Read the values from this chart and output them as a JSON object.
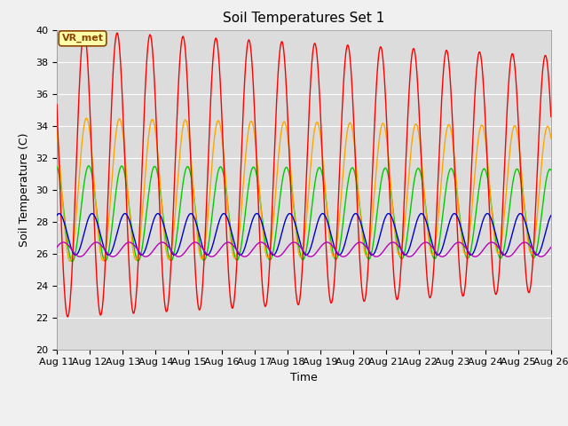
{
  "title": "Soil Temperatures Set 1",
  "xlabel": "Time",
  "ylabel": "Soil Temperature (C)",
  "ylim": [
    20,
    40
  ],
  "x_tick_labels": [
    "Aug 11",
    "Aug 12",
    "Aug 13",
    "Aug 14",
    "Aug 15",
    "Aug 16",
    "Aug 17",
    "Aug 18",
    "Aug 19",
    "Aug 20",
    "Aug 21",
    "Aug 22",
    "Aug 23",
    "Aug 24",
    "Aug 25",
    "Aug 26"
  ],
  "yticks": [
    20,
    22,
    24,
    26,
    28,
    30,
    32,
    34,
    36,
    38,
    40
  ],
  "colors": {
    "Tsoil -2cm": "#FF0000",
    "Tsoil -4cm": "#FFA500",
    "Tsoil -8cm": "#00CC00",
    "Tsoil -16cm": "#0000CC",
    "Tsoil -32cm": "#BB00BB"
  },
  "annotation_text": "VR_met",
  "bg_color": "#DCDCDC",
  "grid_color": "#FFFFFF",
  "title_fontsize": 11,
  "axis_label_fontsize": 9,
  "tick_fontsize": 8,
  "legend_fontsize": 8,
  "lw": 1.0
}
